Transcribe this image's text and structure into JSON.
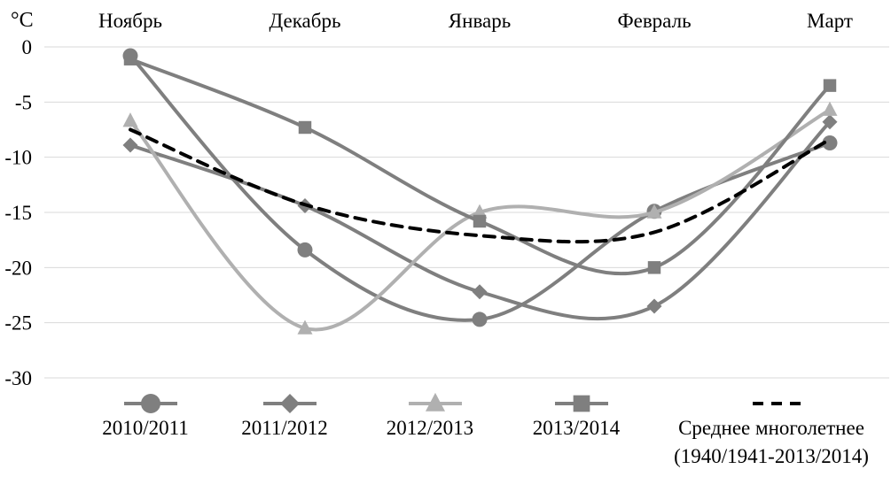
{
  "chart_data": {
    "type": "line",
    "ylabel": "°C",
    "categories": [
      "Ноябрь",
      "Декабрь",
      "Январь",
      "Февраль",
      "Март"
    ],
    "yticks": [
      0,
      -5,
      -10,
      -15,
      -20,
      -25,
      -30
    ],
    "ylim": [
      -30,
      0
    ],
    "grid": true,
    "legend_position": "bottom",
    "series": [
      {
        "name": "2010/2011",
        "values": [
          -0.8,
          -18.4,
          -24.7,
          -14.9,
          -8.7
        ],
        "color": "#7f7f7f",
        "marker": "circle",
        "dashed": false
      },
      {
        "name": "2011/2012",
        "values": [
          -8.9,
          -14.4,
          -22.2,
          -23.5,
          -6.8
        ],
        "color": "#7f7f7f",
        "marker": "diamond",
        "dashed": false
      },
      {
        "name": "2012/2013",
        "values": [
          -6.7,
          -25.5,
          -15.0,
          -15.0,
          -5.7
        ],
        "color": "#b0b0b0",
        "marker": "triangle",
        "dashed": false
      },
      {
        "name": "2013/2014",
        "values": [
          -1.1,
          -7.3,
          -15.8,
          -20.0,
          -3.5
        ],
        "color": "#7f7f7f",
        "marker": "square",
        "dashed": false
      },
      {
        "name": "Среднее многолетнее",
        "name_line2": "(1940/1941-2013/2014)",
        "values": [
          -7.5,
          -14.3,
          -17.1,
          -16.8,
          -8.4
        ],
        "color": "#000000",
        "marker": "none",
        "dashed": true
      }
    ]
  }
}
